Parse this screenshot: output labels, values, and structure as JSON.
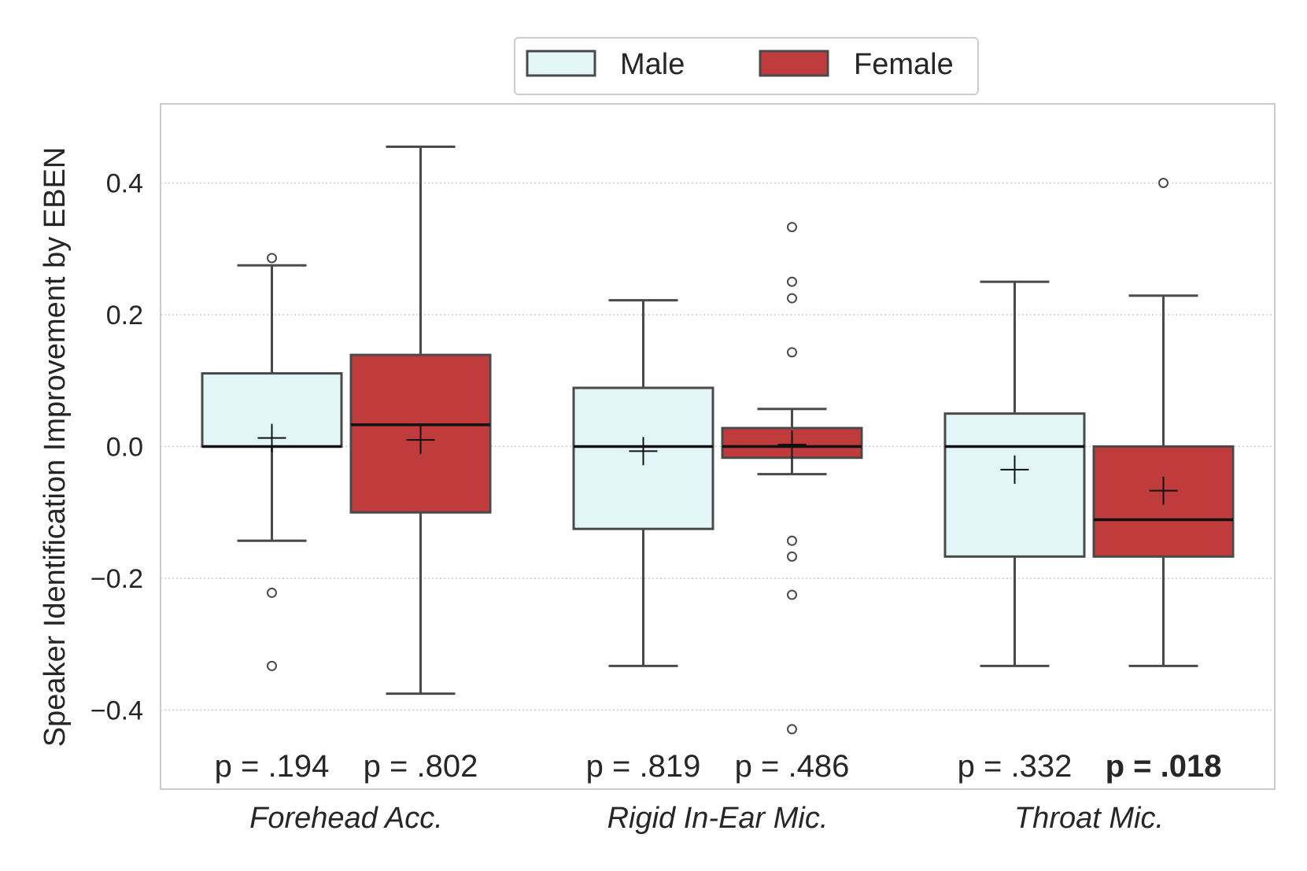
{
  "chart_data": {
    "type": "box",
    "ylabel": "Speaker Identification Improvement by EBEN",
    "ylim": [
      -0.52,
      0.52
    ],
    "yticks": [
      {
        "value": 0.4,
        "label": "0.4"
      },
      {
        "value": 0.2,
        "label": "0.2"
      },
      {
        "value": 0.0,
        "label": "0.0"
      },
      {
        "value": -0.2,
        "label": "−0.2"
      },
      {
        "value": -0.4,
        "label": "−0.4"
      }
    ],
    "grid": "horizontal dotted",
    "legend": {
      "placement": "top-center",
      "entries": [
        {
          "name": "Male",
          "color": "#e2f6f8"
        },
        {
          "name": "Female",
          "color": "#c03b3c"
        }
      ]
    },
    "categories": [
      "Forehead Acc.",
      "Rigid In-Ear Mic.",
      "Throat Mic."
    ],
    "series": [
      {
        "name": "Male",
        "color": "#e2f6f8",
        "boxes": [
          {
            "q1": 0.0,
            "median": 0.0,
            "q3": 0.111,
            "whisker_low": -0.143,
            "whisker_high": 0.275,
            "mean": 0.013,
            "outliers": [
              0.286,
              -0.222,
              -0.333
            ],
            "p_value": "p = .194",
            "significant": false
          },
          {
            "q1": -0.125,
            "median": 0.0,
            "q3": 0.089,
            "whisker_low": -0.333,
            "whisker_high": 0.222,
            "mean": -0.007,
            "outliers": [],
            "p_value": "p = .819",
            "significant": false
          },
          {
            "q1": -0.167,
            "median": 0.0,
            "q3": 0.05,
            "whisker_low": -0.333,
            "whisker_high": 0.25,
            "mean": -0.035,
            "outliers": [],
            "p_value": "p = .332",
            "significant": false
          }
        ]
      },
      {
        "name": "Female",
        "color": "#c03b3c",
        "boxes": [
          {
            "q1": -0.1,
            "median": 0.033,
            "q3": 0.139,
            "whisker_low": -0.375,
            "whisker_high": 0.455,
            "mean": 0.01,
            "outliers": [],
            "p_value": "p = .802",
            "significant": false
          },
          {
            "q1": -0.017,
            "median": 0.0,
            "q3": 0.028,
            "whisker_low": -0.042,
            "whisker_high": 0.057,
            "mean": 0.003,
            "outliers": [
              0.333,
              0.25,
              0.225,
              0.143,
              -0.143,
              -0.167,
              -0.225,
              -0.429
            ],
            "p_value": "p = .486",
            "significant": false
          },
          {
            "q1": -0.167,
            "median": -0.111,
            "q3": 0.0,
            "whisker_low": -0.333,
            "whisker_high": 0.229,
            "mean": -0.067,
            "outliers": [
              0.4
            ],
            "p_value": "p = .018",
            "significant": true
          }
        ]
      }
    ]
  }
}
